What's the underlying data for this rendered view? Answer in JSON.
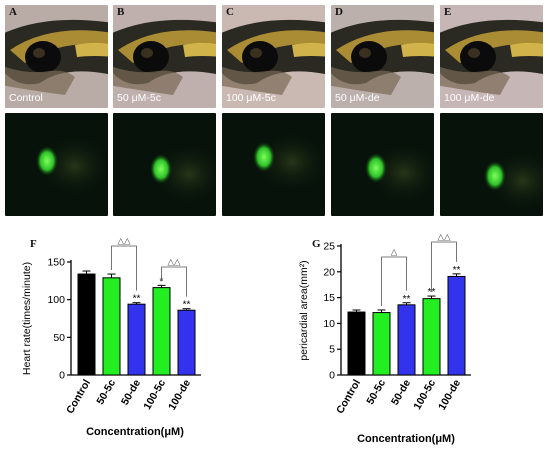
{
  "panels": [
    {
      "letter": "A",
      "label": "Control"
    },
    {
      "letter": "B",
      "label": "50 μM-5c"
    },
    {
      "letter": "C",
      "label": "100 μM-5c"
    },
    {
      "letter": "D",
      "label": "50 μM-de"
    },
    {
      "letter": "E",
      "label": "100 μM-de"
    }
  ],
  "colors": {
    "control": "#000000",
    "c5": "#22ee22",
    "de": "#3333ee"
  },
  "chart_data": [
    {
      "panel": "F",
      "type": "bar",
      "categories": [
        "Control",
        "50-5c",
        "50-de",
        "100-5c",
        "100-de"
      ],
      "values": [
        134,
        129,
        94,
        116,
        86
      ],
      "errors": [
        4,
        5,
        2,
        3,
        2
      ],
      "stars": [
        "",
        "",
        "**",
        "*",
        "**"
      ],
      "ylabel": "Heart rate(times/minute)",
      "xlabel": "Concentration(μM)",
      "ylim": [
        0,
        150
      ],
      "yticks": [
        "0",
        "50",
        "100",
        "150"
      ],
      "comparisons": [
        {
          "from": 1,
          "to": 2,
          "label": "△△"
        },
        {
          "from": 3,
          "to": 4,
          "label": "△△"
        }
      ]
    },
    {
      "panel": "G",
      "type": "bar",
      "categories": [
        "Control",
        "50-5c",
        "50-de",
        "100-5c",
        "100-de"
      ],
      "values": [
        12.2,
        12.1,
        13.6,
        14.8,
        19.1
      ],
      "errors": [
        0.4,
        0.5,
        0.4,
        0.5,
        0.5
      ],
      "stars": [
        "",
        "",
        "**",
        "**",
        "**"
      ],
      "ylabel": "pericardial area(mm²)",
      "xlabel": "Concentration(μM)",
      "ylim": [
        0,
        25
      ],
      "yticks": [
        "0",
        "5",
        "10",
        "15",
        "20",
        "25"
      ],
      "comparisons": [
        {
          "from": 1,
          "to": 2,
          "label": "△"
        },
        {
          "from": 3,
          "to": 4,
          "label": "△△"
        }
      ]
    }
  ]
}
